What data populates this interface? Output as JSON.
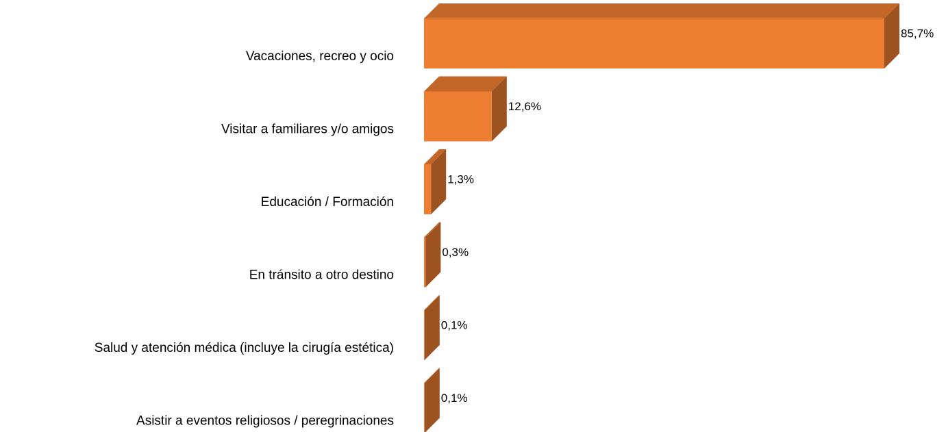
{
  "chart_data": {
    "type": "bar3d_horizontal",
    "categories": [
      "Vacaciones, recreo y ocio",
      "Visitar a familiares y/o amigos",
      "Educación / Formación",
      "En tránsito a otro destino",
      "Salud y atención médica (incluye la cirugía estética)",
      "Asistir a eventos religiosos / peregrinaciones"
    ],
    "values": [
      85.7,
      12.6,
      1.3,
      0.3,
      0.1,
      0.1
    ],
    "value_labels": [
      "85,7%",
      "12,6%",
      "1,3%",
      "0,3%",
      "0,1%",
      "0,1%"
    ],
    "color": "#ed7d31"
  }
}
